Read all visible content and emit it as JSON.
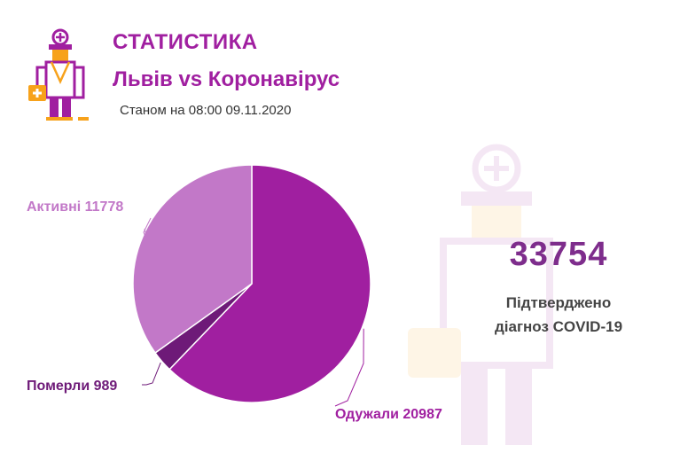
{
  "header": {
    "title": "СТАТИСТИКА",
    "subtitle": "Львів vs Коронавірус",
    "as_of": "Станом на 08:00 09.11.2020"
  },
  "summary": {
    "total": "33754",
    "caption_line1": "Підтверджено",
    "caption_line2": "діагноз COVID-19"
  },
  "colors": {
    "accent": "#a01fa0",
    "recovered": "#a01fa0",
    "deaths": "#6e1a78",
    "active": "#c278c8",
    "logo_orange": "#f7a21b"
  },
  "chart_data": {
    "type": "pie",
    "slices": [
      {
        "name": "Одужали",
        "value": 20987,
        "label": "Одужали 20987",
        "color": "#a01fa0"
      },
      {
        "name": "Померли",
        "value": 989,
        "label": "Померли 989",
        "color": "#6e1a78"
      },
      {
        "name": "Активні",
        "value": 11778,
        "label": "Активні 11778",
        "color": "#c278c8"
      }
    ],
    "start_angle": "12 o'clock",
    "direction": "clockwise",
    "legend": "none",
    "labels_outside": true
  }
}
